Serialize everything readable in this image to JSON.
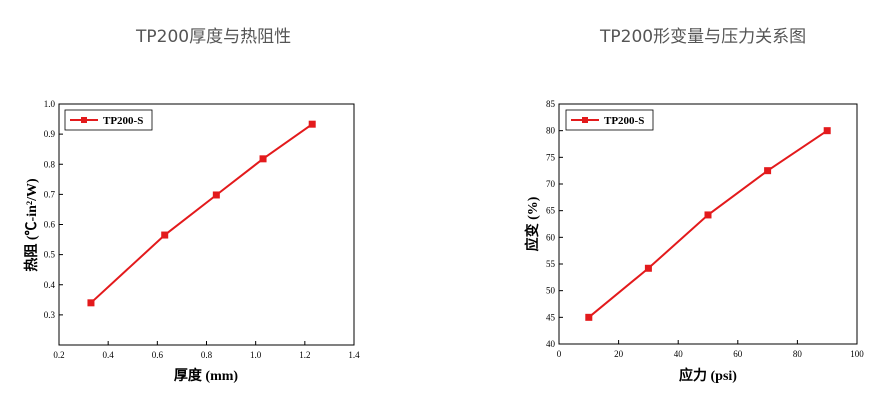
{
  "chart_data": [
    {
      "type": "line",
      "title": "TP200厚度与热阻性",
      "xlabel": "厚度 (mm)",
      "ylabel": "热阻 (℃-in²/W)",
      "xlim": [
        0.2,
        1.4
      ],
      "ylim": [
        0.2,
        1.0
      ],
      "xticks": [
        "0.2",
        "0.4",
        "0.6",
        "0.8",
        "1.0",
        "1.2",
        "1.4"
      ],
      "yticks": [
        "0.3",
        "0.4",
        "0.5",
        "0.6",
        "0.7",
        "0.8",
        "0.9",
        "1.0"
      ],
      "legend": "top-left",
      "grid": false,
      "series": [
        {
          "name": "TP200-S",
          "color": "#e31a1c",
          "x": [
            0.33,
            0.63,
            0.84,
            1.03,
            1.23
          ],
          "y": [
            0.34,
            0.565,
            0.698,
            0.818,
            0.933
          ]
        }
      ]
    },
    {
      "type": "line",
      "title": "TP200形变量与压力关系图",
      "xlabel": "应力 (psi)",
      "ylabel": "应变 (%)",
      "xlim": [
        0,
        100
      ],
      "ylim": [
        40,
        85
      ],
      "xticks": [
        "0",
        "20",
        "40",
        "60",
        "80",
        "100"
      ],
      "yticks": [
        "40",
        "45",
        "50",
        "55",
        "60",
        "65",
        "70",
        "75",
        "80",
        "85"
      ],
      "legend": "top-left",
      "grid": false,
      "series": [
        {
          "name": "TP200-S",
          "color": "#e31a1c",
          "x": [
            10,
            30,
            50,
            70,
            90
          ],
          "y": [
            45,
            54.2,
            64.2,
            72.5,
            80
          ]
        }
      ]
    }
  ]
}
